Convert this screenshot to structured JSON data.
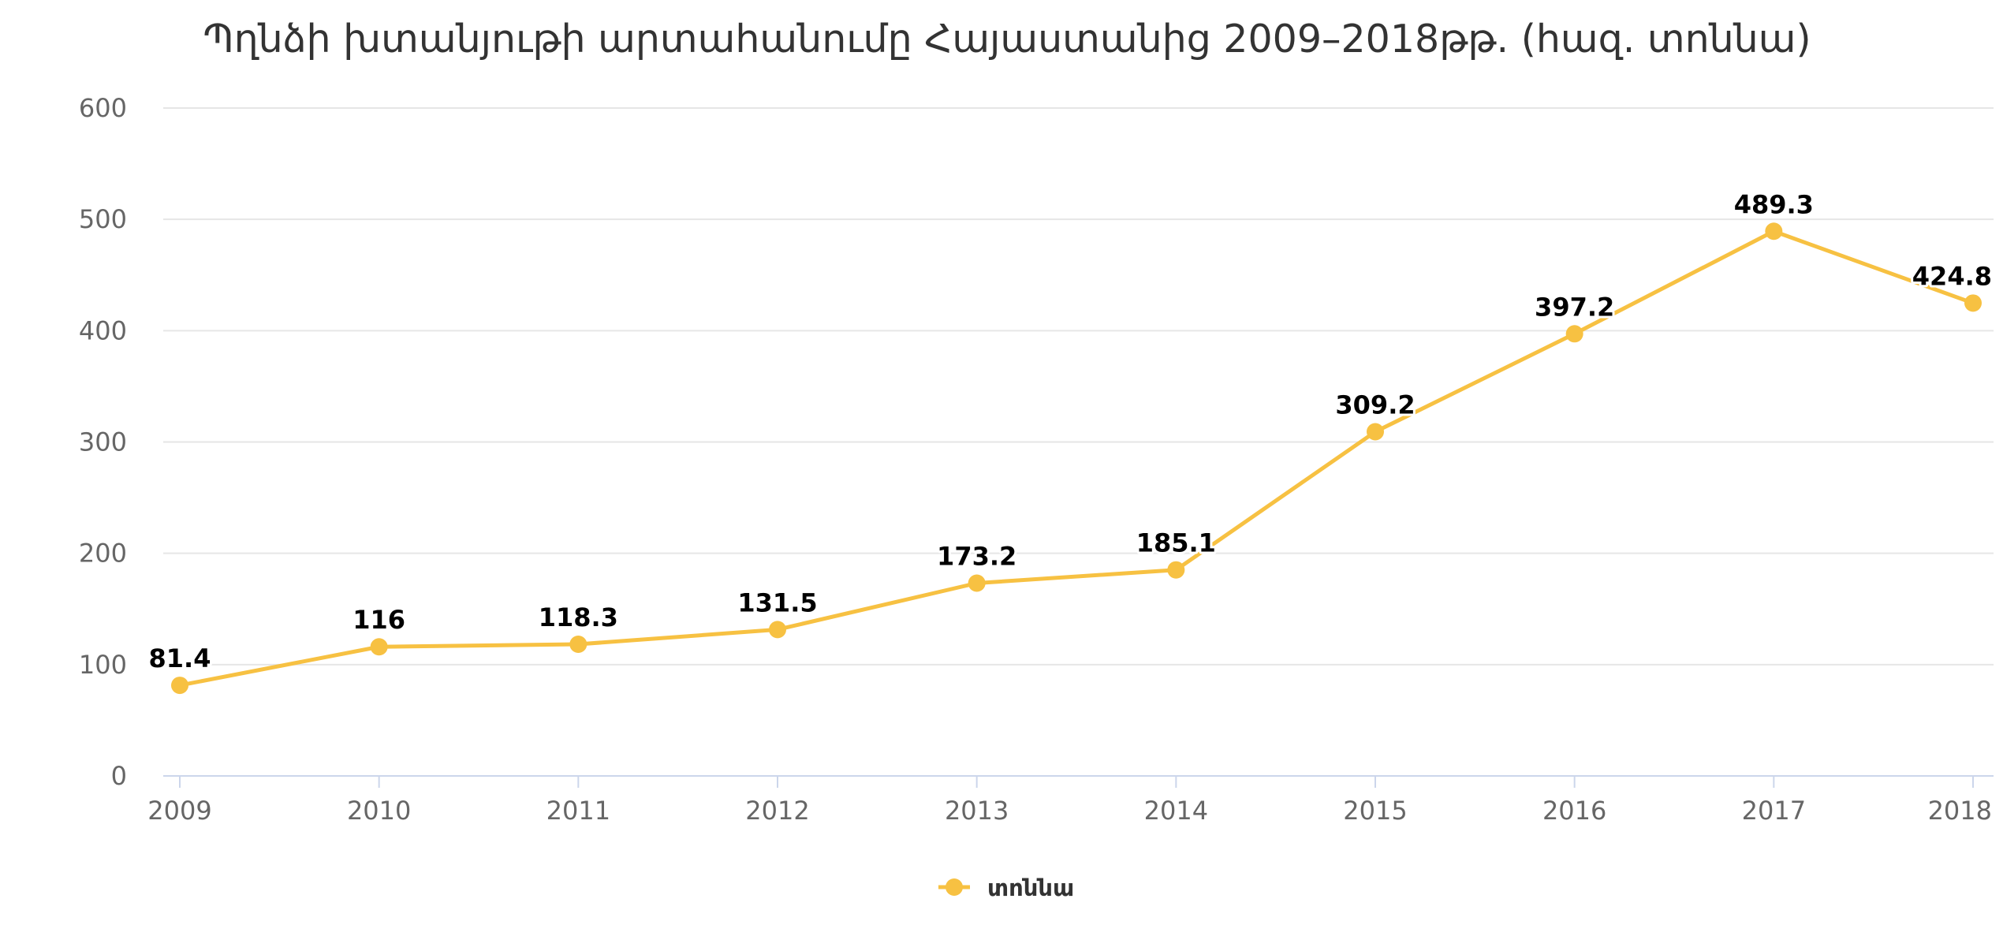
{
  "chart_data": {
    "type": "line",
    "title": "Պղնձի խտանյութի արտահանումը Հայաստանից 2009–2018թթ. (հազ. տոննա)",
    "categories": [
      "2009",
      "2010",
      "2011",
      "2012",
      "2013",
      "2014",
      "2015",
      "2016",
      "2017",
      "2018"
    ],
    "series": [
      {
        "name": "տոննա",
        "values": [
          81.4,
          116,
          118.3,
          131.5,
          173.2,
          185.1,
          309.2,
          397.2,
          489.3,
          424.8
        ],
        "labels": [
          "81.4",
          "116",
          "118.3",
          "131.5",
          "173.2",
          "185.1",
          "309.2",
          "397.2",
          "489.3",
          "424.8"
        ],
        "color": "#f7c142"
      }
    ],
    "ylim": [
      0,
      600
    ],
    "yticks": [
      0,
      100,
      200,
      300,
      400,
      500,
      600
    ],
    "ytick_labels": [
      "0",
      "100",
      "200",
      "300",
      "400",
      "500",
      "600"
    ],
    "xlabel": "",
    "ylabel": "",
    "grid": true,
    "legend": "bottom-center"
  },
  "colors": {
    "grid": "#e6e6e6",
    "axis": "#ccd6eb",
    "series": "#f7c142"
  }
}
